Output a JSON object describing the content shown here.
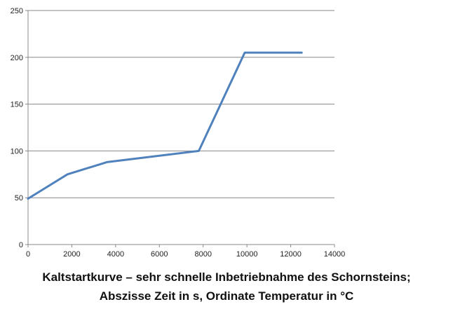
{
  "chart_data": {
    "type": "line",
    "title": "",
    "xlabel": "",
    "ylabel": "",
    "xlim": [
      0,
      14000
    ],
    "ylim": [
      0,
      250
    ],
    "xticks": [
      0,
      2000,
      4000,
      6000,
      8000,
      10000,
      12000,
      14000
    ],
    "yticks": [
      0,
      50,
      100,
      150,
      200,
      250
    ],
    "grid": "horizontal",
    "series": [
      {
        "color": "#4f81bd",
        "points": [
          {
            "x": 0,
            "y": 49
          },
          {
            "x": 1800,
            "y": 75
          },
          {
            "x": 3600,
            "y": 88
          },
          {
            "x": 7800,
            "y": 100
          },
          {
            "x": 9900,
            "y": 205
          },
          {
            "x": 12500,
            "y": 205
          }
        ]
      }
    ]
  },
  "caption": {
    "line1": "Kaltstartkurve – sehr schnelle Inbetriebnahme des Schornsteins;",
    "line2": "Abszisse Zeit in s, Ordinate Temperatur in °C"
  }
}
